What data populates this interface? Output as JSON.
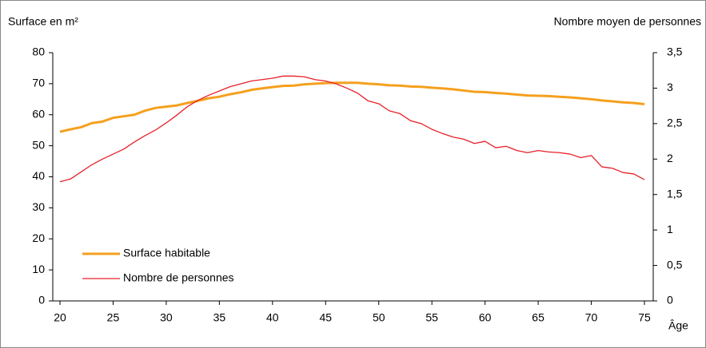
{
  "chart_data": {
    "type": "line",
    "ylabel": "Surface en m²",
    "y2label": "Nombre moyen de personnes",
    "xlabel": "Âge",
    "x": [
      20,
      21,
      22,
      23,
      24,
      25,
      26,
      27,
      28,
      29,
      30,
      31,
      32,
      33,
      34,
      35,
      36,
      37,
      38,
      39,
      40,
      41,
      42,
      43,
      44,
      45,
      46,
      47,
      48,
      49,
      50,
      51,
      52,
      53,
      54,
      55,
      56,
      57,
      58,
      59,
      60,
      61,
      62,
      63,
      64,
      65,
      66,
      67,
      68,
      69,
      70,
      71,
      72,
      73,
      74,
      75
    ],
    "series": [
      {
        "name": "Surface habitable",
        "color": "#f5a01e",
        "width": 3,
        "values": [
          54.5,
          55.3,
          56,
          57.3,
          57.8,
          59,
          59.5,
          60,
          61.3,
          62.2,
          62.6,
          63,
          63.8,
          64.5,
          65.3,
          65.8,
          66.6,
          67.2,
          68,
          68.5,
          68.9,
          69.3,
          69.4,
          69.8,
          70,
          70.2,
          70.3,
          70.3,
          70.3,
          70,
          69.8,
          69.5,
          69.4,
          69.1,
          69,
          68.7,
          68.5,
          68.2,
          67.8,
          67.4,
          67.3,
          67,
          66.8,
          66.5,
          66.2,
          66.1,
          66,
          65.8,
          65.6,
          65.3,
          65,
          64.6,
          64.3,
          64,
          63.8,
          63.4
        ]
      },
      {
        "name": "Nombre de personnes",
        "color": "#e8202a",
        "width": 1.3,
        "axis": "y2",
        "values": [
          1.68,
          1.72,
          1.82,
          1.92,
          2.0,
          2.07,
          2.14,
          2.24,
          2.33,
          2.41,
          2.51,
          2.62,
          2.74,
          2.83,
          2.9,
          2.96,
          3.02,
          3.06,
          3.1,
          3.12,
          3.14,
          3.17,
          3.17,
          3.16,
          3.12,
          3.1,
          3.06,
          3.0,
          2.93,
          2.82,
          2.78,
          2.68,
          2.64,
          2.54,
          2.5,
          2.42,
          2.36,
          2.31,
          2.28,
          2.22,
          2.25,
          2.16,
          2.18,
          2.12,
          2.09,
          2.12,
          2.1,
          2.09,
          2.07,
          2.02,
          2.05,
          1.89,
          1.87,
          1.81,
          1.79,
          1.71
        ]
      }
    ],
    "xlim": [
      20,
      75
    ],
    "xticks": [
      20,
      25,
      30,
      35,
      40,
      45,
      50,
      55,
      60,
      65,
      70,
      75
    ],
    "ylim": [
      0,
      80
    ],
    "yticks": [
      0,
      10,
      20,
      30,
      40,
      50,
      60,
      70,
      80
    ],
    "y2lim": [
      0,
      3.5
    ],
    "y2ticks": [
      0,
      {
        "value": 0.5,
        "label": "0,5"
      },
      1,
      {
        "value": 1.5,
        "label": "1,5"
      },
      2,
      {
        "value": 2.5,
        "label": "2,5"
      },
      3,
      {
        "value": 3.5,
        "label": "3,5"
      }
    ],
    "grid": false,
    "legend": "lower left"
  }
}
